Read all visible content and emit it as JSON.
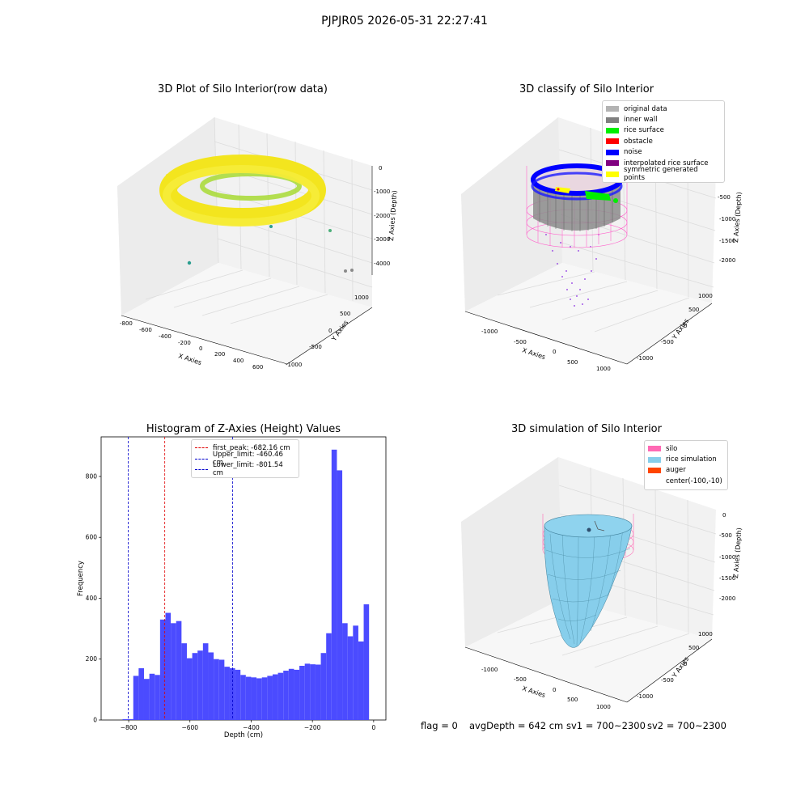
{
  "figure": {
    "suptitle": "PJPJR05 2026-05-31 22:27:41",
    "footer": {
      "flag": "flag = 0",
      "avg": "avgDepth = 642 cm",
      "sv1": "sv1 = 700~2300",
      "sv2": "sv2 = 700~2300"
    }
  },
  "chart_data": [
    {
      "type": "scatter",
      "title": "3D Plot of Silo Interior(row data)",
      "xlabel": "X Axies",
      "ylabel": "Y Axies",
      "zlabel": "Z Axies (Depth)",
      "x_ticks": [
        "-800",
        "-600",
        "-400",
        "-200",
        "0",
        "200",
        "400",
        "600"
      ],
      "y_ticks": [
        "-1000",
        "-500",
        "0",
        "500",
        "1000"
      ],
      "z_ticks": [
        "0",
        "-1000",
        "-2000",
        "-3000",
        "-4000"
      ],
      "colormap": [
        "#f3e51e",
        "#a8db34",
        "#2a9d8e",
        "#7a7a7a"
      ],
      "note_data": "ring of points ~radius 500 near depth -1000; sparse outliers down to ~-4000"
    },
    {
      "type": "scatter",
      "title": "3D classify of Silo Interior",
      "xlabel": "X Axies",
      "ylabel": "Y Axies",
      "zlabel": "Z Axies (Depth)",
      "x_ticks": [
        "-1000",
        "-500",
        "0",
        "500",
        "1000"
      ],
      "y_ticks": [
        "-1000",
        "-500",
        "0",
        "500",
        "1000"
      ],
      "z_ticks": [
        "-500",
        "-1000",
        "-1500",
        "-2000"
      ],
      "legend": [
        {
          "label": "original data",
          "color": "#b3b3b3"
        },
        {
          "label": "inner wall",
          "color": "#808080"
        },
        {
          "label": "rice surface",
          "color": "#00ee00"
        },
        {
          "label": "obstacle",
          "color": "#ff0000"
        },
        {
          "label": "noise",
          "color": "#0000ff"
        },
        {
          "label": "interpolated rice surface",
          "color": "#800080"
        },
        {
          "label": "symmetric generated points",
          "color": "#ffff00"
        }
      ]
    },
    {
      "type": "bar",
      "title": "Histogram of Z-Axies (Height) Values",
      "xlabel": "Depth (cm)",
      "ylabel": "Frequency",
      "xlim": [
        -890,
        40
      ],
      "ylim": [
        0,
        930
      ],
      "x_ticks": [
        -800,
        -600,
        -400,
        -200,
        0
      ],
      "y_ticks": [
        0,
        200,
        400,
        600,
        800
      ],
      "bin_start": -820,
      "bin_width": 17.5,
      "counts": [
        3,
        3,
        145,
        170,
        135,
        152,
        148,
        330,
        352,
        318,
        325,
        252,
        203,
        220,
        228,
        252,
        222,
        200,
        198,
        175,
        170,
        165,
        148,
        142,
        140,
        137,
        140,
        145,
        150,
        155,
        162,
        168,
        165,
        178,
        185,
        183,
        182,
        220,
        285,
        888,
        820,
        318,
        275,
        310,
        258,
        380
      ],
      "bar_color": "#4b4bff",
      "vlines": [
        {
          "label": "first_peak: -682.16 cm",
          "x": -682.16,
          "color": "#e00000"
        },
        {
          "label": "Upper_limit: -460.46 cm",
          "x": -460.46,
          "color": "#0000cc"
        },
        {
          "label": "Lower_limit: -801.54 cm",
          "x": -801.54,
          "color": "#0000cc"
        }
      ],
      "legend_position": "top-center"
    },
    {
      "type": "area",
      "title": "3D simulation of Silo Interior",
      "xlabel": "X Axies",
      "ylabel": "Y Axies",
      "zlabel": "Z Axies (Depth)",
      "x_ticks": [
        "-1000",
        "-500",
        "0",
        "500",
        "1000"
      ],
      "y_ticks": [
        "-1000",
        "-500",
        "0",
        "500",
        "1000"
      ],
      "z_ticks": [
        "0",
        "-500",
        "-1000",
        "-1500",
        "-2000"
      ],
      "legend": [
        {
          "label": "silo",
          "color": "#ff69b4"
        },
        {
          "label": "rice simulation",
          "color": "#87ceeb"
        },
        {
          "label": "auger",
          "color": "#ff4500"
        },
        {
          "label": "center(-100,-10)",
          "color": ""
        }
      ]
    }
  ]
}
